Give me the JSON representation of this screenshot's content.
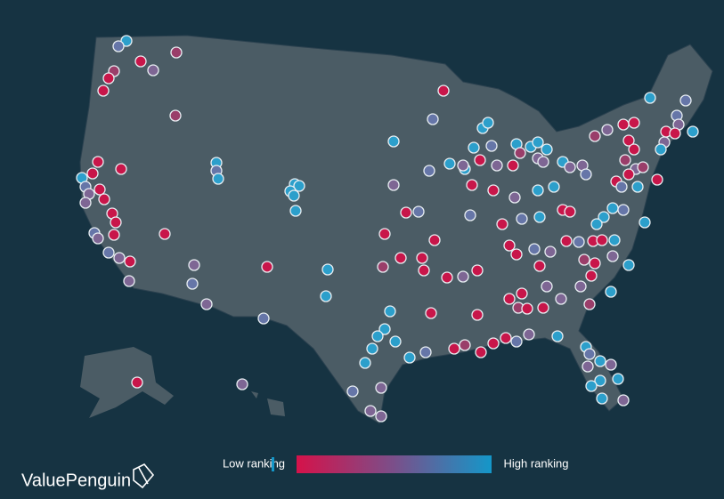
{
  "legend": {
    "low_label": "Low ranking",
    "high_label": "High ranking"
  },
  "brand": "ValuePenguin"
}
